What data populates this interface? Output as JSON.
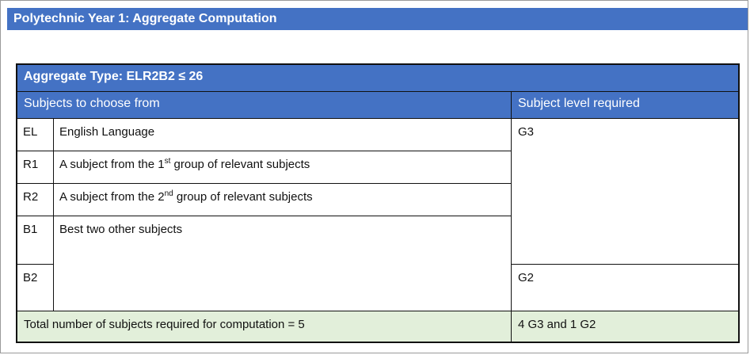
{
  "page": {
    "title": "Polytechnic Year 1: Aggregate Computation"
  },
  "table": {
    "aggregate_type": "Aggregate Type: ELR2B2 ≤ 26",
    "col_subjects": "Subjects to choose from",
    "col_level": "Subject level required",
    "rows": [
      {
        "code": "EL",
        "desc_pre": "English Language",
        "sup": "",
        "desc_post": ""
      },
      {
        "code": "R1",
        "desc_pre": "A subject from the 1",
        "sup": "st",
        "desc_post": " group of relevant subjects"
      },
      {
        "code": "R2",
        "desc_pre": "A subject from the 2",
        "sup": "nd",
        "desc_post": " group of relevant subjects"
      },
      {
        "code": "B1",
        "desc_pre": "Best two other subjects",
        "sup": "",
        "desc_post": ""
      },
      {
        "code": "B2"
      }
    ],
    "level_g3": "G3",
    "level_g2": "G2",
    "total_label": "Total number of subjects required for computation = 5",
    "total_level": "4 G3 and 1 G2"
  }
}
